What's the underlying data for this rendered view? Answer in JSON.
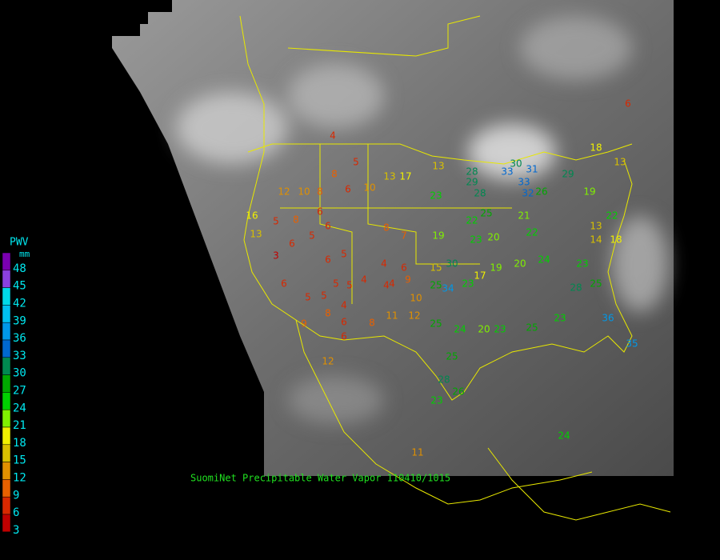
{
  "legend": {
    "title": "PWV",
    "unit": "mm",
    "levels": [
      48,
      45,
      42,
      39,
      36,
      33,
      30,
      27,
      24,
      21,
      18,
      15,
      12,
      9,
      6,
      3
    ],
    "colors": [
      "#7a00b0",
      "#8a40e0",
      "#00d8e8",
      "#00c0f0",
      "#0098e8",
      "#0068d0",
      "#008850",
      "#00a800",
      "#00d000",
      "#80f000",
      "#f0f000",
      "#d8c000",
      "#e09000",
      "#e86000",
      "#d82800",
      "#c00000"
    ],
    "label_color": "#00e8f0"
  },
  "caption": "SuomiNet Precipitable Water Vapor 110410/1015",
  "caption_color": "#20e020",
  "stations": [
    4,
    5,
    8,
    6,
    10,
    13,
    17,
    13,
    28,
    29,
    33,
    30,
    31,
    33,
    32,
    26,
    23,
    28,
    25,
    22,
    21,
    22,
    29,
    19,
    13,
    18,
    19,
    23,
    20,
    15,
    30,
    34,
    23,
    25,
    17,
    19,
    20,
    24,
    23,
    25,
    28,
    36,
    35,
    25,
    24,
    20,
    23,
    25,
    23,
    25,
    28,
    26,
    23,
    10,
    11,
    12,
    4,
    4,
    5,
    5,
    4,
    5,
    5,
    8,
    6,
    8,
    12,
    6,
    9,
    6,
    3,
    6,
    5,
    6,
    5,
    6,
    4,
    8,
    7,
    4,
    6,
    9,
    8,
    5,
    13,
    16,
    12,
    10,
    8,
    6,
    11,
    24,
    6,
    18,
    13,
    22,
    14
  ]
}
